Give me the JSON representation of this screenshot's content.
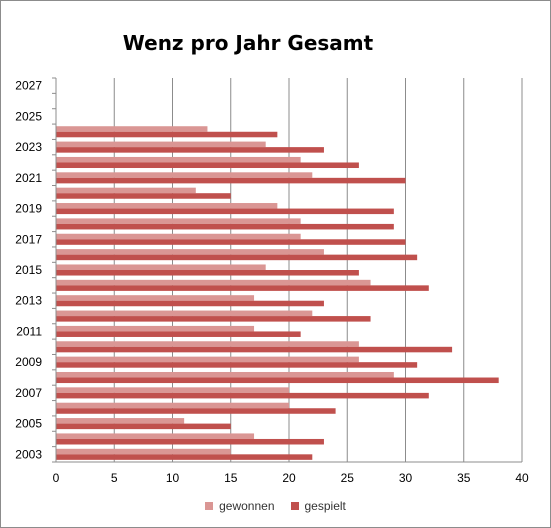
{
  "chart_data": {
    "type": "bar",
    "orientation": "horizontal",
    "title": "Wenz pro Jahr Gesamt",
    "xlim": [
      0,
      40
    ],
    "x_ticks": [
      "0",
      "5",
      "10",
      "15",
      "20",
      "25",
      "30",
      "35",
      "40"
    ],
    "y_tick_labels": [
      "2003",
      "2005",
      "2007",
      "2009",
      "2011",
      "2013",
      "2015",
      "2017",
      "2019",
      "2021",
      "2023",
      "2025",
      "2027"
    ],
    "categories": [
      "2003",
      "2004",
      "2005",
      "2006",
      "2007",
      "2008",
      "2009",
      "2010",
      "2011",
      "2012",
      "2013",
      "2014",
      "2015",
      "2016",
      "2017",
      "2018",
      "2019",
      "2020",
      "2021",
      "2022",
      "2023",
      "2024",
      "2025",
      "2026",
      "2027"
    ],
    "series": [
      {
        "name": "gewonnen",
        "color": "#DA9694",
        "values": [
          15,
          17,
          11,
          20,
          20,
          29,
          26,
          26,
          17,
          22,
          17,
          27,
          18,
          23,
          21,
          21,
          19,
          12,
          22,
          21,
          18,
          13,
          null,
          null,
          null
        ]
      },
      {
        "name": "gespielt",
        "color": "#C0504D",
        "values": [
          22,
          23,
          15,
          24,
          32,
          38,
          31,
          34,
          21,
          27,
          23,
          32,
          26,
          31,
          30,
          29,
          29,
          15,
          30,
          26,
          23,
          19,
          null,
          null,
          null
        ]
      }
    ],
    "grid": true,
    "legend_position": "bottom"
  }
}
